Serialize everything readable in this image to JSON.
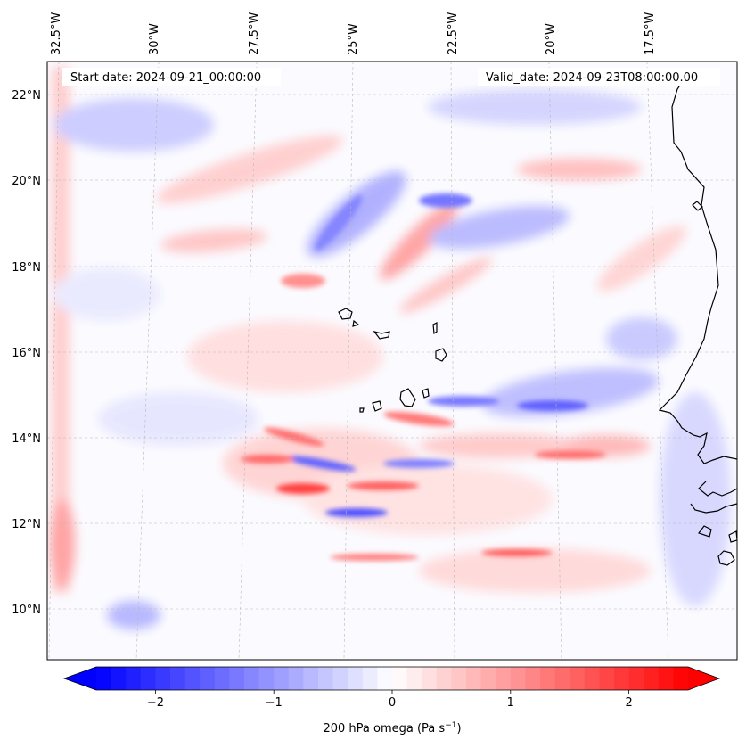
{
  "map": {
    "start_date": "Start date: 2024-09-21_00:00:00",
    "valid_date": "Valid_date: 2024-09-23T08:00:00.00",
    "variable": "200 hPa omega",
    "units": "Pa s",
    "units_exponent": "−1",
    "lon_labels": [
      "32.5°W",
      "30°W",
      "27.5°W",
      "25°W",
      "22.5°W",
      "20°W",
      "17.5°W"
    ],
    "lat_labels": [
      "22°N",
      "20°N",
      "18°N",
      "16°N",
      "14°N",
      "12°N",
      "10°N"
    ],
    "colors": {
      "negative": "#0000ff",
      "zero": "#ffffff",
      "positive": "#ff0000",
      "coast": "#000000"
    }
  },
  "colorbar": {
    "min": -2.75,
    "max": 2.75,
    "ticks": [
      {
        "label": "−2",
        "value": -2
      },
      {
        "label": "−1",
        "value": -1
      },
      {
        "label": "0",
        "value": 0
      },
      {
        "label": "1",
        "value": 1
      },
      {
        "label": "2",
        "value": 2
      }
    ]
  }
}
